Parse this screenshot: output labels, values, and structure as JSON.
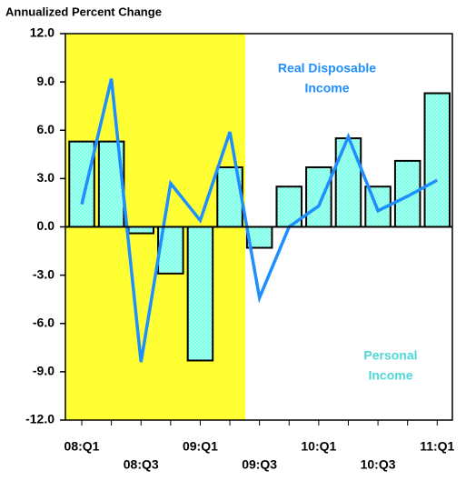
{
  "chart_data": {
    "type": "bar_line",
    "title": "Annualized Percent Change",
    "categories": [
      "08:Q1",
      null,
      "08:Q3",
      null,
      "09:Q1",
      null,
      "09:Q3",
      null,
      "10:Q1",
      null,
      "10:Q3",
      null,
      "11:Q1"
    ],
    "series": [
      {
        "name": "Personal Income",
        "type": "bar",
        "color": "#80ffe8",
        "values": [
          5.3,
          5.3,
          -0.4,
          -2.9,
          -8.3,
          3.7,
          -1.3,
          2.5,
          3.7,
          5.5,
          2.5,
          4.1,
          8.3
        ]
      },
      {
        "name": "Real Disposable Income",
        "type": "line",
        "color": "#1f8fff",
        "values": [
          1.4,
          9.2,
          -8.4,
          2.7,
          0.4,
          5.9,
          -4.4,
          0.0,
          1.3,
          5.6,
          1.0,
          1.9,
          2.9
        ]
      }
    ],
    "annotations": [
      [
        "Real Disposable",
        "Income"
      ],
      [
        "Personal",
        "Income"
      ]
    ],
    "ylim": [
      -12,
      12
    ],
    "yticks": [
      {
        "value": -12,
        "label": "-12.0"
      },
      {
        "value": -9,
        "label": "-9.0"
      },
      {
        "value": -6,
        "label": "-6.0"
      },
      {
        "value": -3,
        "label": "-3.0"
      },
      {
        "value": 0,
        "label": "0.0"
      },
      {
        "value": 3,
        "label": "3.0"
      },
      {
        "value": 6,
        "label": "6.0"
      },
      {
        "value": 9,
        "label": "9.0"
      },
      {
        "value": 12,
        "label": "12.0"
      }
    ]
  }
}
